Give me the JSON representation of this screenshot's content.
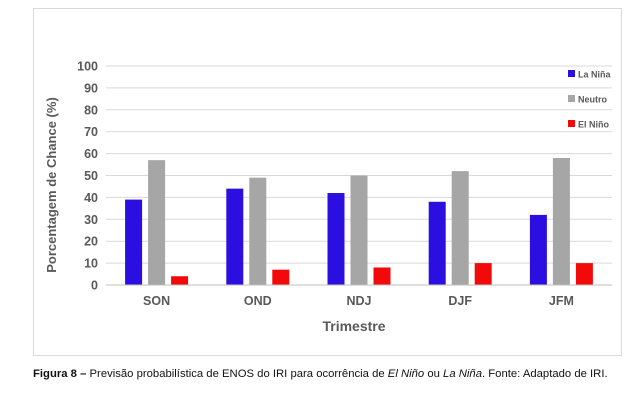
{
  "chart_data": {
    "type": "bar",
    "title": "",
    "xlabel": "Trimestre",
    "ylabel": "Porcentagem de Chance (%)",
    "ylim": [
      0,
      100
    ],
    "yticks": [
      0,
      10,
      20,
      30,
      40,
      50,
      60,
      70,
      80,
      90,
      100
    ],
    "grid": true,
    "legend_position": "top-right",
    "categories": [
      "SON",
      "OND",
      "NDJ",
      "DJF",
      "JFM"
    ],
    "series": [
      {
        "name": "La Niña",
        "color": "#2b0fe0",
        "values": [
          39,
          44,
          42,
          38,
          32
        ]
      },
      {
        "name": "Neutro",
        "color": "#a6a6a6",
        "values": [
          57,
          49,
          50,
          52,
          58
        ]
      },
      {
        "name": "El Niño",
        "color": "#f20a0a",
        "values": [
          4,
          7,
          8,
          10,
          10
        ]
      }
    ]
  },
  "caption": {
    "label": "Figura 8",
    "dash": " – ",
    "text_1": "Previsão probabilística de ENOS do IRI para ocorrência de ",
    "italic_1": "El Niño",
    "text_2": " ou ",
    "italic_2": "La Niña",
    "text_3": ". Fonte: Adaptado de IRI."
  }
}
